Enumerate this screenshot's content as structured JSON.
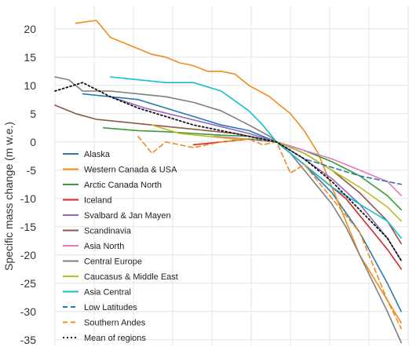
{
  "chart_data": {
    "type": "line",
    "title": "",
    "xlabel": "",
    "ylabel": "Specific mass change (m w.e.)",
    "ylim": [
      -36,
      24
    ],
    "yticks": [
      20,
      15,
      10,
      5,
      0,
      -5,
      -10,
      -15,
      -20,
      -25,
      -30,
      -35
    ],
    "xlim": [
      1972,
      2023
    ],
    "grid": true,
    "legend_position": "left",
    "series": [
      {
        "name": "Alaska",
        "color": "#2a7ab0",
        "dash": "solid",
        "x": [
          1976,
          1980,
          1984,
          1988,
          1992,
          1996,
          2000,
          2004,
          2008,
          2012,
          2016,
          2020,
          2022
        ],
        "y": [
          8.5,
          8,
          7.5,
          6,
          4.5,
          3,
          2,
          0,
          -4,
          -9,
          -16,
          -25,
          -30
        ]
      },
      {
        "name": "Western Canada & USA",
        "color": "#f08c1e",
        "dash": "solid",
        "x": [
          1975,
          1978,
          1980,
          1982,
          1984,
          1986,
          1988,
          1990,
          1992,
          1994,
          1996,
          1998,
          2000,
          2003,
          2006,
          2008,
          2010,
          2012,
          2014,
          2016,
          2018,
          2020,
          2022
        ],
        "y": [
          21,
          21.5,
          18.5,
          17.5,
          16.5,
          15.5,
          15,
          14,
          13.5,
          12.5,
          12.5,
          12,
          10,
          8,
          5,
          2,
          -2,
          -8,
          -14,
          -20,
          -24,
          -28,
          -32
        ]
      },
      {
        "name": "Arctic Canada North",
        "color": "#3a9b3a",
        "dash": "solid",
        "x": [
          1979,
          1984,
          1988,
          1992,
          1996,
          2000,
          2004,
          2008,
          2012,
          2016,
          2020,
          2022
        ],
        "y": [
          2.5,
          2,
          1.8,
          1.5,
          1.2,
          1,
          0,
          -1.5,
          -3.5,
          -6,
          -9.5,
          -12
        ]
      },
      {
        "name": "Iceland",
        "color": "#d62728",
        "dash": "solid",
        "x": [
          1992,
          1996,
          2000,
          2004,
          2006,
          2008,
          2010,
          2012,
          2014,
          2016,
          2018,
          2020,
          2022
        ],
        "y": [
          -0.5,
          0,
          0.5,
          0,
          -2,
          -4,
          -6,
          -8,
          -10,
          -13,
          -16,
          -19,
          -22.5
        ]
      },
      {
        "name": "Svalbard & Jan Mayen",
        "color": "#9467bd",
        "dash": "solid",
        "x": [
          1980,
          1985,
          1990,
          1995,
          2000,
          2004,
          2008,
          2012,
          2016,
          2020,
          2022
        ],
        "y": [
          8,
          6,
          4.5,
          3,
          1.5,
          0,
          -3,
          -6.5,
          -11,
          -17,
          -21
        ]
      },
      {
        "name": "Scandinavia",
        "color": "#8c564b",
        "dash": "solid",
        "x": [
          1972,
          1975,
          1978,
          1982,
          1986,
          1990,
          1994,
          1998,
          2002,
          2004,
          2008,
          2012,
          2016,
          2020,
          2022
        ],
        "y": [
          6.5,
          5,
          4,
          3.5,
          3,
          2.5,
          2,
          1.5,
          0.5,
          0,
          -2,
          -5,
          -9,
          -14,
          -18
        ]
      },
      {
        "name": "Asia North",
        "color": "#e377c2",
        "dash": "solid",
        "x": [
          1995,
          2000,
          2004,
          2008,
          2012,
          2016,
          2020,
          2022
        ],
        "y": [
          1,
          0.5,
          0,
          -1.5,
          -3,
          -5,
          -7,
          -9.5
        ]
      },
      {
        "name": "Central Europe",
        "color": "#7f7f7f",
        "dash": "solid",
        "x": [
          1972,
          1974,
          1976,
          1980,
          1984,
          1988,
          1992,
          1996,
          2000,
          2003,
          2006,
          2008,
          2010,
          2012,
          2014,
          2016,
          2018,
          2020,
          2022
        ],
        "y": [
          11.5,
          11,
          9,
          9,
          8.5,
          8,
          7,
          5.5,
          3,
          1,
          -2,
          -5,
          -8,
          -11,
          -15,
          -20,
          -25,
          -30,
          -35.5
        ]
      },
      {
        "name": "Caucasus & Middle East",
        "color": "#bcbd22",
        "dash": "solid",
        "x": [
          1986,
          1990,
          1994,
          1998,
          2002,
          2004,
          2008,
          2012,
          2016,
          2020,
          2022
        ],
        "y": [
          3,
          1.5,
          1,
          0.5,
          0.5,
          0,
          -2,
          -5,
          -8,
          -11.5,
          -14
        ]
      },
      {
        "name": "Asia Central",
        "color": "#17becf",
        "dash": "solid",
        "x": [
          1980,
          1984,
          1988,
          1992,
          1996,
          2000,
          2002,
          2004,
          2008,
          2012,
          2016,
          2020,
          2022
        ],
        "y": [
          11.5,
          11,
          10.5,
          10.5,
          9,
          5.5,
          3,
          0,
          -4,
          -8,
          -11,
          -14,
          -17
        ]
      },
      {
        "name": "Low Latitudes",
        "color": "#2a7ab0",
        "dash": "dashed",
        "x": [
          2000,
          2004,
          2008,
          2012,
          2016,
          2020,
          2022
        ],
        "y": [
          0.5,
          0,
          -3,
          -4.5,
          -6,
          -7,
          -7.5
        ]
      },
      {
        "name": "Southern Andes",
        "color": "#f08c1e",
        "dash": "dashed",
        "x": [
          1984,
          1986,
          1988,
          1992,
          1996,
          2000,
          2002,
          2004,
          2006,
          2008,
          2010,
          2012,
          2014,
          2016,
          2018,
          2020,
          2022
        ],
        "y": [
          1,
          -2,
          0,
          -1,
          0,
          0.5,
          -0.5,
          0,
          -5.5,
          -4,
          -7,
          -10,
          -13,
          -16,
          -22,
          -28,
          -33
        ]
      },
      {
        "name": "Mean of regions",
        "color": "#111111",
        "dash": "dotted",
        "x": [
          1972,
          1976,
          1980,
          1984,
          1988,
          1992,
          1996,
          2000,
          2004,
          2008,
          2012,
          2016,
          2020,
          2022
        ],
        "y": [
          9,
          10.5,
          8,
          6,
          4.5,
          3,
          2,
          1,
          0,
          -3,
          -7,
          -12,
          -17,
          -21
        ]
      }
    ]
  }
}
